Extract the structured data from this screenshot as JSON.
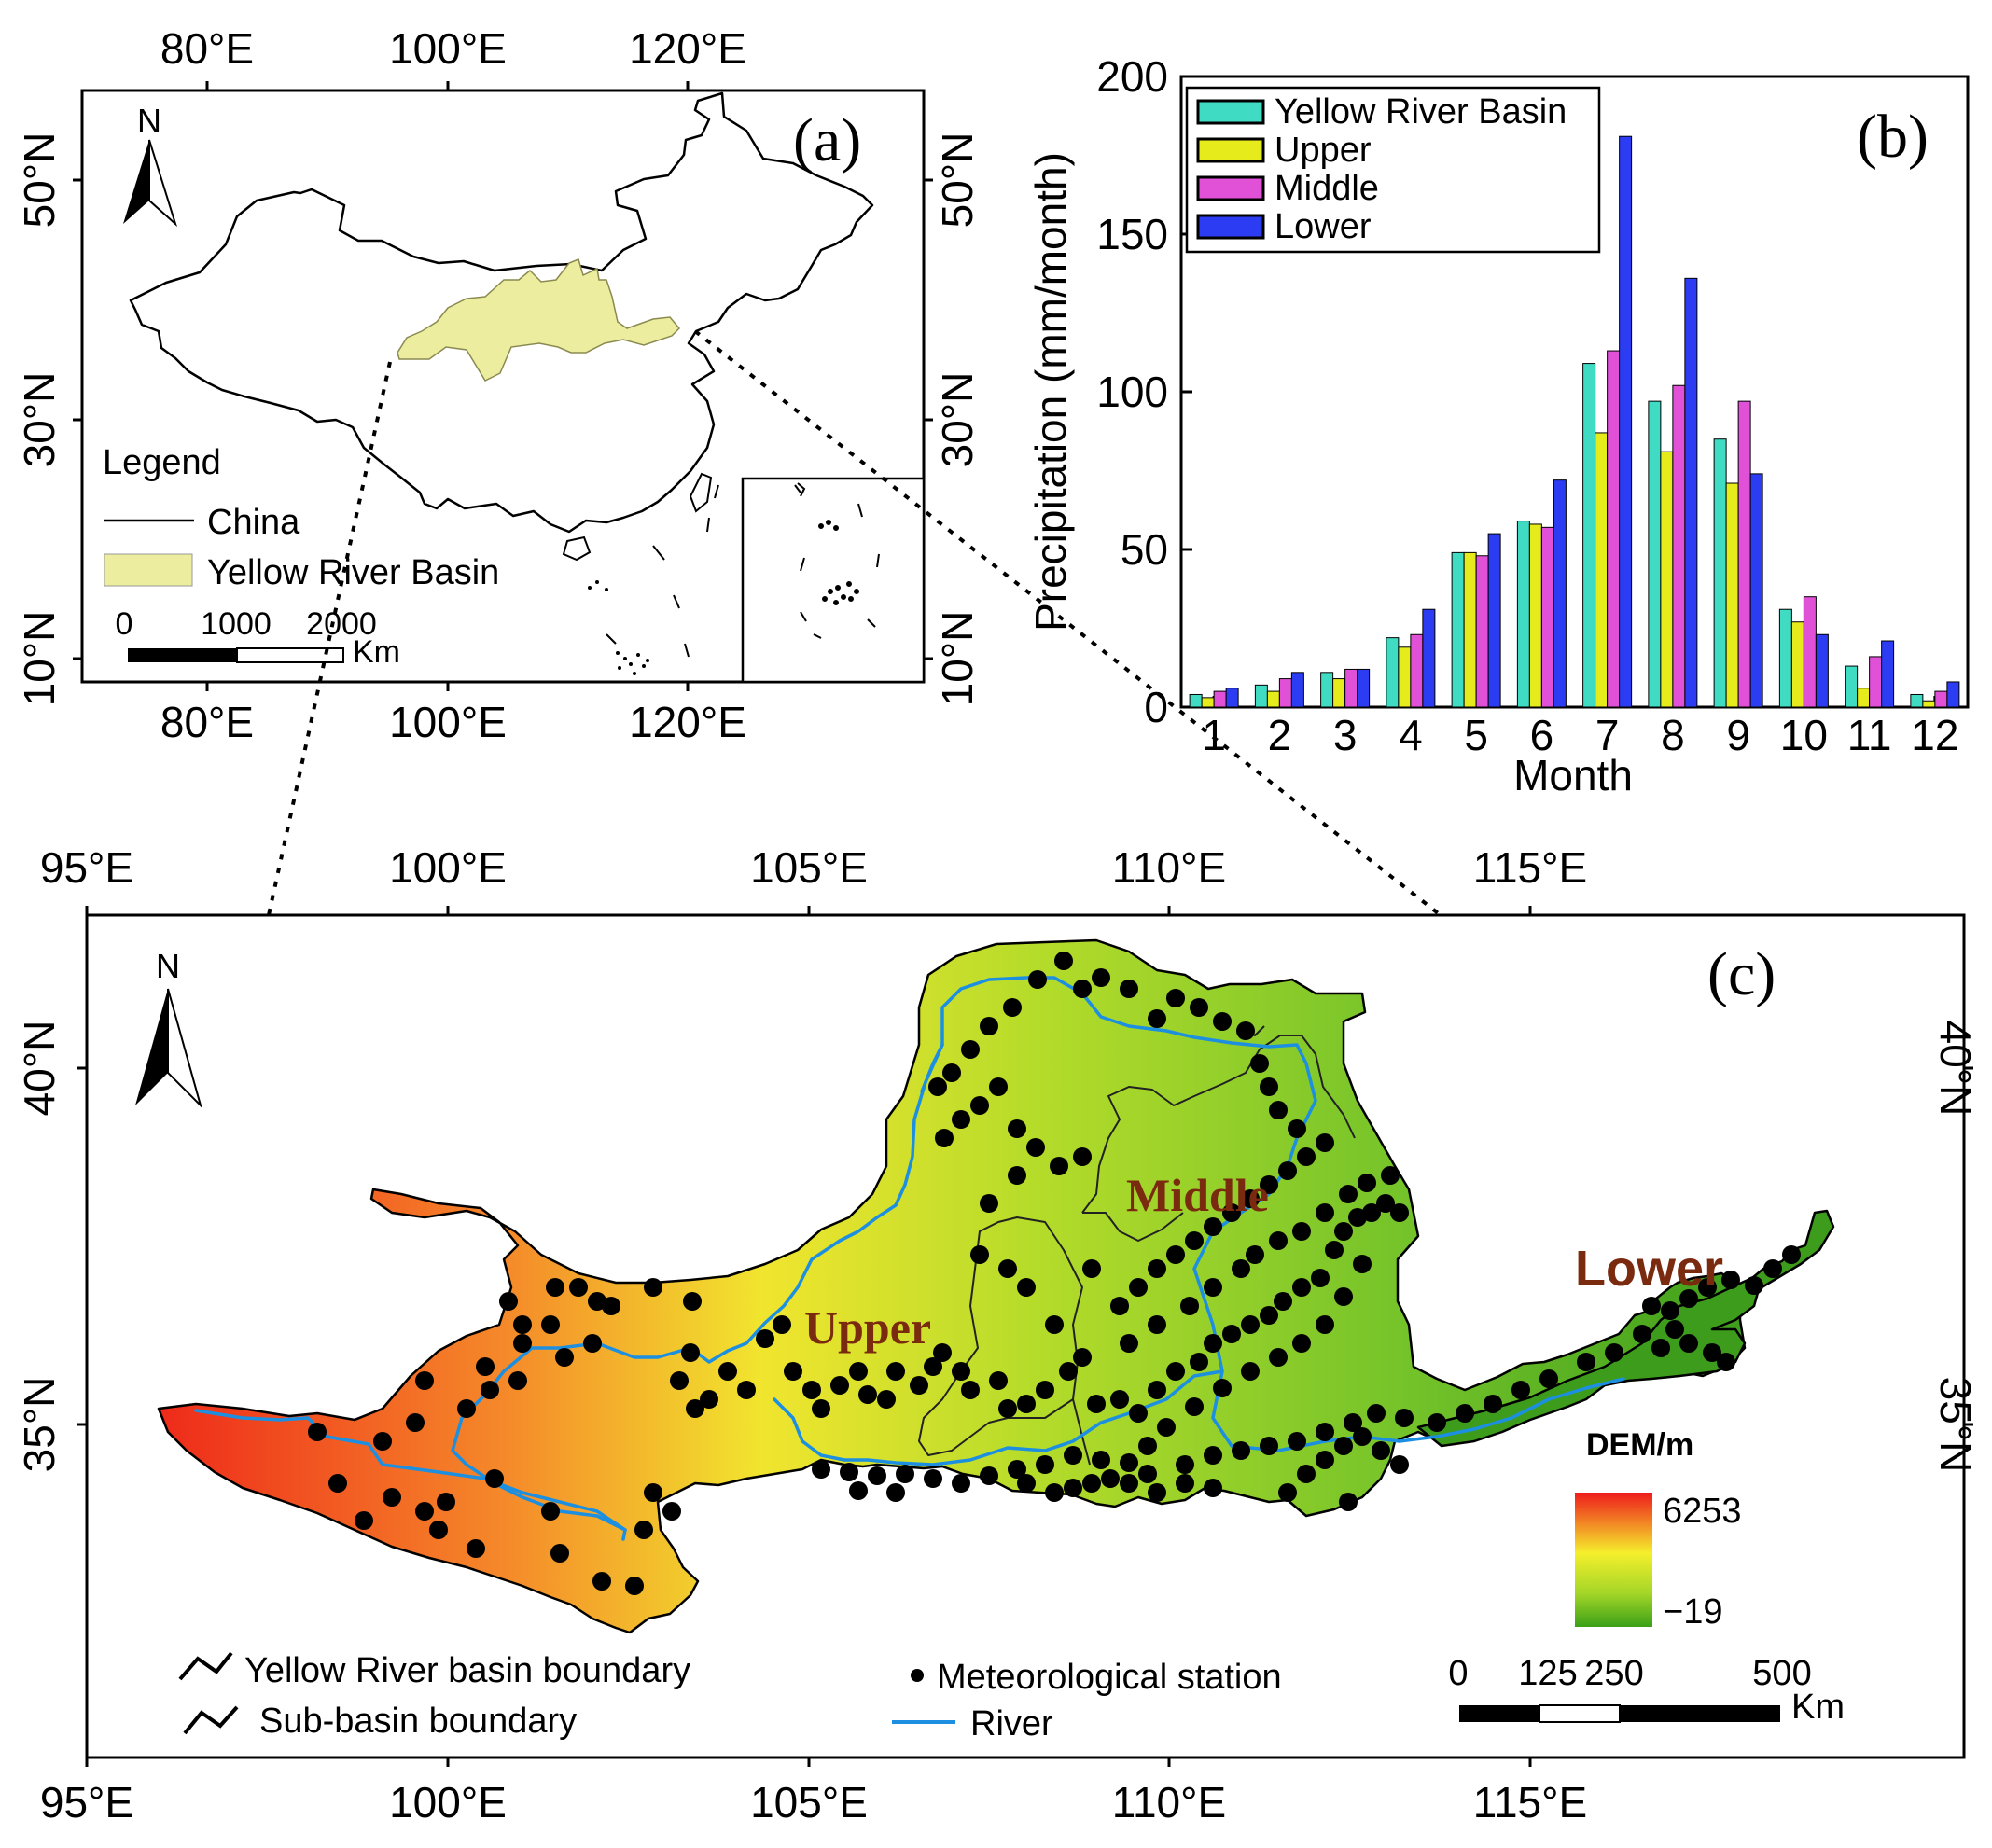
{
  "panel_a": {
    "tag": "(a)",
    "lon_ticks": [
      "80°E",
      "100°E",
      "120°E"
    ],
    "lat_ticks": [
      "50°N",
      "30°N",
      "10°N"
    ],
    "north": "N",
    "legend": {
      "title": "Legend",
      "items": [
        {
          "label": "China",
          "style": "line",
          "color": "#000000"
        },
        {
          "label": "Yellow River Basin",
          "style": "fill",
          "color": "#eded9f"
        }
      ]
    },
    "scale": {
      "ticks": [
        "0",
        "1000",
        "2000"
      ],
      "unit": "Km"
    }
  },
  "chart_data": {
    "type": "bar",
    "tag": "(b)",
    "title": "",
    "xlabel": "Month",
    "ylabel": "Precipitation (mm/month)",
    "ylim": [
      0,
      200
    ],
    "yticks": [
      "0",
      "50",
      "100",
      "150",
      "200"
    ],
    "categories": [
      "1",
      "2",
      "3",
      "4",
      "5",
      "6",
      "7",
      "8",
      "9",
      "10",
      "11",
      "12"
    ],
    "legend_position": "top-left",
    "series": [
      {
        "name": "Yellow River Basin",
        "color": "#3fdcc3",
        "values": [
          4,
          7,
          11,
          22,
          49,
          59,
          109,
          97,
          85,
          31,
          13,
          4
        ]
      },
      {
        "name": "Upper",
        "color": "#e6ec1c",
        "values": [
          3,
          5,
          9,
          19,
          49,
          58,
          87,
          81,
          71,
          27,
          6,
          2
        ]
      },
      {
        "name": "Middle",
        "color": "#e051d8",
        "values": [
          5,
          9,
          12,
          23,
          48,
          57,
          113,
          102,
          97,
          35,
          16,
          5
        ]
      },
      {
        "name": "Lower",
        "color": "#2b3cf2",
        "values": [
          6,
          11,
          12,
          31,
          55,
          72,
          181,
          136,
          74,
          23,
          21,
          8
        ]
      }
    ]
  },
  "panel_c": {
    "tag": "(c)",
    "lon_ticks": [
      "95°E",
      "100°E",
      "105°E",
      "110°E",
      "115°E"
    ],
    "lat_ticks": [
      "40°N",
      "35°N"
    ],
    "north": "N",
    "region_labels": [
      "Upper",
      "Middle",
      "Lower"
    ],
    "legend": {
      "basin_boundary": "Yellow River basin boundary",
      "sub_basin": "Sub-basin boundary",
      "station": "Meteorological station",
      "river": "River"
    },
    "dem": {
      "title": "DEM/m",
      "max": "6253",
      "min": "−19"
    },
    "scale": {
      "ticks": [
        "0",
        "125",
        "250",
        "500"
      ],
      "unit": "Km"
    },
    "colors": {
      "river": "#1d8fe0",
      "dem_high": "#ee1c1c",
      "dem_mid": "#f5ef2c",
      "dem_low": "#3aa017",
      "region_text": "#7a2a0e"
    }
  }
}
